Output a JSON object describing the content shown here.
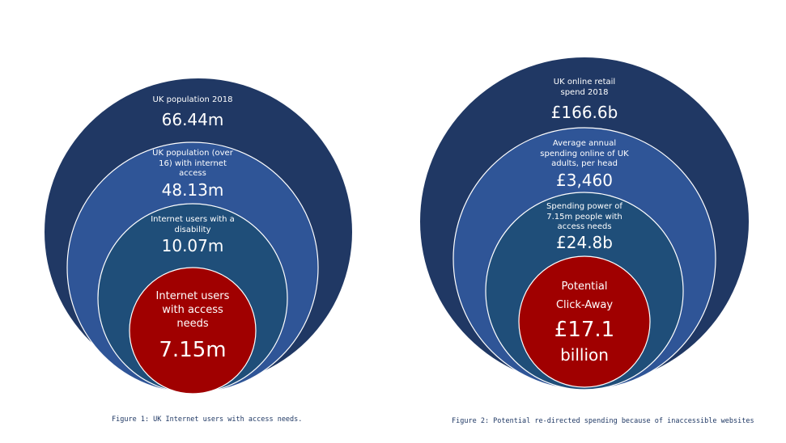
{
  "figure1": {
    "rings": [
      {
        "label": "UK population 2018",
        "value": "66.44m",
        "color": "#203864"
      },
      {
        "label": "UK population (over 16) with internet access",
        "value": "48.13m",
        "color": "#2f5597"
      },
      {
        "label": "Internet users with a disability",
        "value": "10.07m",
        "color": "#1f4e79"
      },
      {
        "label": "Internet users with access needs",
        "value": "7.15m",
        "color": "#a00000"
      }
    ],
    "caption": "Figure 1: UK Internet users with access needs."
  },
  "figure2": {
    "rings": [
      {
        "label": "UK online retail spend 2018",
        "value": "£166.6b",
        "color": "#203864"
      },
      {
        "label": "Average annual spending online of UK adults, per head",
        "value": "£3,460",
        "color": "#2f5597"
      },
      {
        "label": "Spending power of 7.15m people with access needs",
        "value": "£24.8b",
        "color": "#1f4e79"
      },
      {
        "label_line1": "Potential",
        "label_line2": "Click-Away",
        "value": "£17.1",
        "value_suffix": "billion",
        "color": "#a00000"
      }
    ],
    "caption": "Figure 2: Potential re-directed spending because of inaccessible websites"
  }
}
